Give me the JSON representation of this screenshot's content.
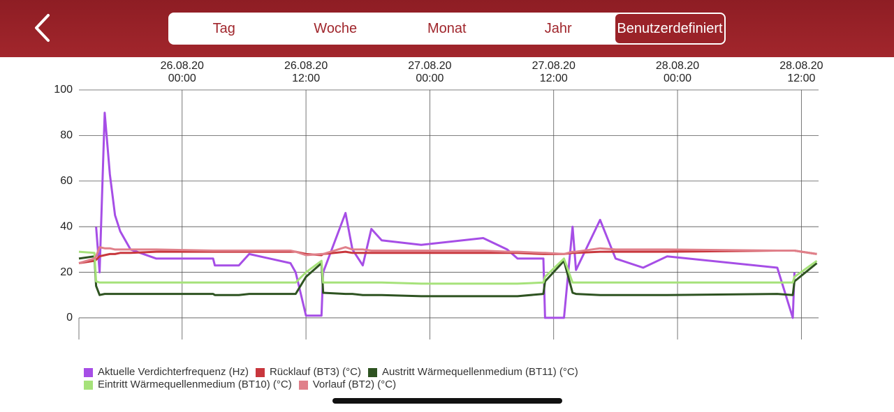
{
  "nav": {
    "tabs": [
      "Tag",
      "Woche",
      "Monat",
      "Jahr",
      "Benutzerdefiniert"
    ],
    "selected": 4
  },
  "chart_data": {
    "type": "line",
    "x": [
      "25.08.20 14:00",
      "25.08.20 15:30",
      "25.08.20 15:40",
      "25.08.20 16:00",
      "25.08.20 16:30",
      "25.08.20 17:00",
      "25.08.20 17:30",
      "25.08.20 18:00",
      "25.08.20 19:00",
      "25.08.20 21:30",
      "26.08.20 03:00",
      "26.08.20 03:10",
      "26.08.20 05:30",
      "26.08.20 06:30",
      "26.08.20 10:30",
      "26.08.20 11:00",
      "26.08.20 12:00",
      "26.08.20 13:30",
      "26.08.20 13:40",
      "26.08.20 15:50",
      "26.08.20 16:30",
      "26.08.20 17:30",
      "26.08.20 18:20",
      "26.08.20 19:20",
      "26.08.20 23:10",
      "27.08.20 05:10",
      "27.08.20 07:30",
      "27.08.20 08:30",
      "27.08.20 11:00",
      "27.08.20 11:10",
      "27.08.20 13:00",
      "27.08.20 13:50",
      "27.08.20 14:10",
      "27.08.20 16:30",
      "27.08.20 18:00",
      "27.08.20 20:40",
      "27.08.20 23:00",
      "28.08.20 09:40",
      "28.08.20 11:10",
      "28.08.20 11:20",
      "28.08.20 13:30"
    ],
    "series": [
      {
        "name": "Aktuelle Verdichterfrequenz (Hz)",
        "color": "#a64ee6",
        "values": [
          null,
          null,
          40,
          20,
          90,
          63,
          45,
          38,
          30,
          26,
          26,
          23,
          23,
          28,
          24,
          20,
          1,
          1,
          20,
          46,
          30,
          23,
          39,
          34,
          32,
          35,
          30,
          26,
          26,
          0,
          0,
          40,
          21,
          43,
          26,
          22,
          27,
          22,
          0,
          20,
          null
        ]
      },
      {
        "name": "Rücklauf (BT3) (°C)",
        "color": "#c8373d",
        "values": [
          24,
          25,
          25.5,
          27,
          27.5,
          28,
          28,
          28.5,
          28.5,
          29,
          29,
          29,
          29,
          29,
          29,
          29,
          28,
          27.5,
          28,
          29,
          28.5,
          28.5,
          28.5,
          28.5,
          28.5,
          28.5,
          28.5,
          28.5,
          28,
          28,
          28,
          28.5,
          28.5,
          29,
          29,
          29,
          29,
          29.5,
          29.5,
          29.5,
          28
        ]
      },
      {
        "name": "Austritt Wärmequellenmedium (BT11) (°C)",
        "color": "#2e5321",
        "values": [
          26,
          27,
          14,
          10,
          10.5,
          10.5,
          10.5,
          10.5,
          10.5,
          10.5,
          10.5,
          10,
          10,
          10.5,
          10.5,
          10.5,
          18,
          24,
          11,
          10.5,
          10.5,
          10,
          10,
          10,
          9.5,
          9.5,
          9.5,
          9.5,
          10.5,
          16,
          25,
          11,
          10.5,
          10,
          10,
          10,
          10,
          10.5,
          10,
          16,
          24
        ]
      },
      {
        "name": "Eintritt Wärmequellenmedium (BT10) (°C)",
        "color": "#a6e27a",
        "values": [
          29,
          28.5,
          16,
          15.5,
          15.5,
          15.5,
          15.5,
          15.5,
          15.5,
          15.5,
          15.5,
          15.5,
          15.5,
          15.5,
          15.5,
          15.5,
          20,
          25,
          15.5,
          15.5,
          15.5,
          15.5,
          15.5,
          15.5,
          15,
          15,
          15,
          15,
          15.5,
          18,
          26,
          15.5,
          15.5,
          15.5,
          15.5,
          15.5,
          15.5,
          15.5,
          15.5,
          18,
          25
        ]
      },
      {
        "name": "Vorlauf (BT2) (°C)",
        "color": "#e0808a",
        "values": [
          24,
          26,
          27,
          31,
          30.5,
          30.5,
          30,
          30,
          30,
          30,
          29.5,
          29.5,
          29.5,
          29.5,
          29.5,
          29,
          27.5,
          28,
          28,
          31,
          30,
          30,
          29.5,
          29.5,
          29.5,
          29.5,
          29,
          29,
          28.5,
          28.5,
          28,
          29,
          29,
          30.5,
          30,
          30,
          30,
          29.5,
          29.5,
          29.5,
          28
        ]
      }
    ],
    "xlim": [
      "25.08.20 14:00",
      "28.08.20 13:40"
    ],
    "xticks": [
      {
        "date": "26.08.20",
        "time": "00:00"
      },
      {
        "date": "26.08.20",
        "time": "12:00"
      },
      {
        "date": "27.08.20",
        "time": "00:00"
      },
      {
        "date": "27.08.20",
        "time": "12:00"
      },
      {
        "date": "28.08.20",
        "time": "00:00"
      },
      {
        "date": "28.08.20",
        "time": "12:00"
      }
    ],
    "ylim": [
      -9.5,
      100
    ],
    "yticks": [
      0,
      20,
      40,
      60,
      80,
      100
    ],
    "grid": true
  }
}
